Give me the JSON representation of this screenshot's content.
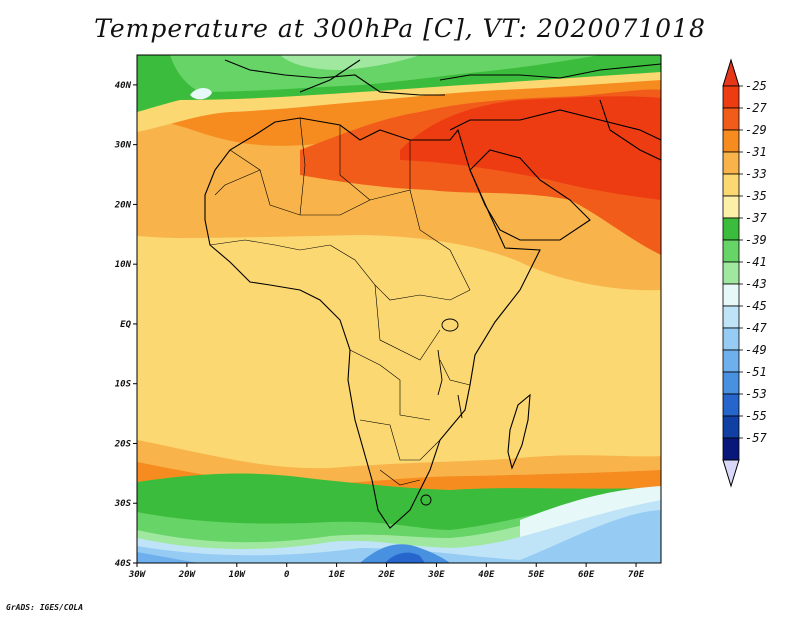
{
  "title": "Temperature at 300hPa [C], VT: 2020071018",
  "credit": "GrADS: IGES/COLA",
  "map": {
    "lon_labels": [
      "30W",
      "20W",
      "10W",
      "0",
      "10E",
      "20E",
      "30E",
      "40E",
      "50E",
      "60E",
      "70E"
    ],
    "lat_labels": [
      "40N",
      "30N",
      "20N",
      "10N",
      "EQ",
      "10S",
      "20S",
      "30S",
      "40S"
    ],
    "lon_range": [
      -30,
      75
    ],
    "lat_range": [
      -40,
      45
    ]
  },
  "colorbar": {
    "labels": [
      "-25",
      "-27",
      "-29",
      "-31",
      "-33",
      "-35",
      "-37",
      "-39",
      "-41",
      "-43",
      "-45",
      "-47",
      "-49",
      "-51",
      "-53",
      "-55",
      "-57"
    ],
    "colors": [
      "#ee3c12",
      "#f25c1a",
      "#f68c20",
      "#f8b44a",
      "#fbd872",
      "#fcf0a8",
      "#3cbc3c",
      "#66d466",
      "#a0e8a0",
      "#e6f8f8",
      "#bfe4f8",
      "#96ccf4",
      "#6eb0ee",
      "#4890e0",
      "#2666cc",
      "#1040a4",
      "#08187a"
    ],
    "top_arrow_color": "#e6371a",
    "bottom_arrow_color": "#d8d8f8"
  }
}
